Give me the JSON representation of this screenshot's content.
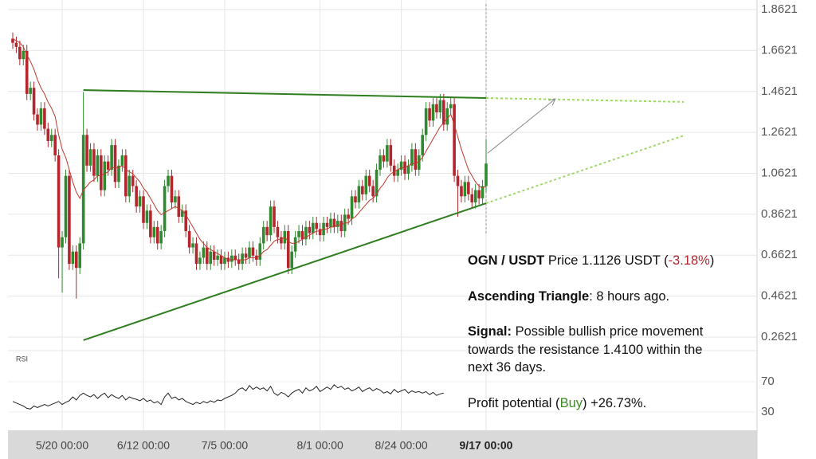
{
  "chart_data": {
    "type": "candlestick",
    "open": [
      1.72,
      1.7,
      1.68,
      1.62,
      1.66,
      1.45,
      1.48,
      1.35,
      1.3,
      1.38,
      1.28,
      1.22,
      1.25,
      1.15,
      0.7,
      0.75,
      1.05,
      0.62,
      0.68,
      0.6,
      0.72,
      1.25,
      1.1,
      1.18,
      1.05,
      1.15,
      0.98,
      1.12,
      1.08,
      1.2,
      1.02,
      1.1,
      1.15,
      0.95,
      1.05,
      1.0,
      0.9,
      0.95,
      0.82,
      0.88,
      0.75,
      0.8,
      0.72,
      0.78,
      1.0,
      1.05,
      0.92,
      0.95,
      0.85,
      0.88,
      0.78,
      0.7,
      0.72,
      0.62,
      0.65,
      0.7,
      0.62,
      0.68,
      0.64,
      0.66,
      0.62,
      0.65,
      0.63,
      0.66,
      0.64,
      0.62,
      0.67,
      0.65,
      0.7,
      0.66,
      0.64,
      0.72,
      0.8,
      0.76,
      0.9,
      0.8,
      0.75,
      0.72,
      0.78,
      0.6,
      0.68,
      0.75,
      0.78,
      0.74,
      0.8,
      0.77,
      0.82,
      0.79,
      0.76,
      0.82,
      0.8,
      0.84,
      0.8,
      0.83,
      0.78,
      0.86,
      0.84,
      0.95,
      0.92,
      1.0,
      0.96,
      1.05,
      1.0,
      0.95,
      1.08,
      1.15,
      1.12,
      1.2,
      1.1,
      1.05,
      1.08,
      1.12,
      1.06,
      1.1,
      1.18,
      1.08,
      1.15,
      1.25,
      1.38,
      1.32,
      1.4,
      1.36,
      1.42,
      1.3,
      1.38,
      1.4,
      1.05,
      1.0,
      0.95,
      1.02,
      0.96,
      0.92,
      0.98,
      0.94,
      1.0
    ],
    "high": [
      1.75,
      1.73,
      1.71,
      1.69,
      1.69,
      1.51,
      1.51,
      1.38,
      1.41,
      1.41,
      1.31,
      1.28,
      1.28,
      1.18,
      0.78,
      1.08,
      1.08,
      0.71,
      0.71,
      0.75,
      1.46,
      1.28,
      1.21,
      1.21,
      1.18,
      1.18,
      1.15,
      1.15,
      1.23,
      1.23,
      1.13,
      1.18,
      1.18,
      1.08,
      1.08,
      1.03,
      0.98,
      0.98,
      0.91,
      0.91,
      0.83,
      0.83,
      0.81,
      1.03,
      1.08,
      1.08,
      0.98,
      0.98,
      0.91,
      0.91,
      0.81,
      0.75,
      0.75,
      0.68,
      0.73,
      0.73,
      0.71,
      0.71,
      0.69,
      0.69,
      0.68,
      0.68,
      0.69,
      0.69,
      0.67,
      0.7,
      0.7,
      0.73,
      0.73,
      0.69,
      0.75,
      0.83,
      0.83,
      0.93,
      0.93,
      0.83,
      0.78,
      0.81,
      0.81,
      0.71,
      0.78,
      0.81,
      0.81,
      0.83,
      0.83,
      0.85,
      0.85,
      0.82,
      0.85,
      0.85,
      0.87,
      0.87,
      0.86,
      0.86,
      0.89,
      0.89,
      0.98,
      0.98,
      1.03,
      1.03,
      1.08,
      1.08,
      1.03,
      1.11,
      1.18,
      1.18,
      1.23,
      1.23,
      1.13,
      1.11,
      1.15,
      1.15,
      1.13,
      1.21,
      1.21,
      1.18,
      1.28,
      1.41,
      1.41,
      1.43,
      1.43,
      1.45,
      1.45,
      1.41,
      1.43,
      1.43,
      1.08,
      1.03,
      1.05,
      1.05,
      0.99,
      1.01,
      1.01,
      1.03,
      1.23
    ],
    "low": [
      1.67,
      1.65,
      1.59,
      1.59,
      1.42,
      1.42,
      1.32,
      1.27,
      1.27,
      1.25,
      1.19,
      1.19,
      1.12,
      0.55,
      0.48,
      0.72,
      0.59,
      0.59,
      0.45,
      0.57,
      0.69,
      1.07,
      1.07,
      1.02,
      1.02,
      0.95,
      0.95,
      1.05,
      1.05,
      0.99,
      0.99,
      1.07,
      0.92,
      0.92,
      0.97,
      0.87,
      0.87,
      0.79,
      0.79,
      0.72,
      0.72,
      0.69,
      0.69,
      0.75,
      0.97,
      0.89,
      0.89,
      0.82,
      0.82,
      0.75,
      0.67,
      0.67,
      0.59,
      0.59,
      0.62,
      0.59,
      0.59,
      0.61,
      0.61,
      0.59,
      0.59,
      0.6,
      0.6,
      0.61,
      0.59,
      0.59,
      0.62,
      0.62,
      0.63,
      0.61,
      0.61,
      0.69,
      0.73,
      0.73,
      0.77,
      0.72,
      0.69,
      0.69,
      0.57,
      0.57,
      0.65,
      0.72,
      0.71,
      0.71,
      0.74,
      0.74,
      0.76,
      0.73,
      0.73,
      0.77,
      0.77,
      0.77,
      0.77,
      0.75,
      0.75,
      0.81,
      0.81,
      0.89,
      0.89,
      0.93,
      0.93,
      0.97,
      0.92,
      0.92,
      1.05,
      1.09,
      1.09,
      1.07,
      1.02,
      1.02,
      1.05,
      1.03,
      1.03,
      1.07,
      1.05,
      1.05,
      1.12,
      1.22,
      1.29,
      1.29,
      1.33,
      1.33,
      1.27,
      1.27,
      1.35,
      1.02,
      0.85,
      0.92,
      0.92,
      0.93,
      0.89,
      0.89,
      0.91,
      0.91,
      0.97
    ],
    "close": [
      1.7,
      1.68,
      1.62,
      1.66,
      1.45,
      1.48,
      1.35,
      1.3,
      1.38,
      1.28,
      1.22,
      1.25,
      1.15,
      0.7,
      0.75,
      1.05,
      0.62,
      0.68,
      0.6,
      0.72,
      1.25,
      1.1,
      1.18,
      1.05,
      1.15,
      0.98,
      1.12,
      1.08,
      1.2,
      1.02,
      1.1,
      1.15,
      0.95,
      1.05,
      1.0,
      0.9,
      0.95,
      0.82,
      0.88,
      0.75,
      0.8,
      0.72,
      0.78,
      1.0,
      1.05,
      0.92,
      0.95,
      0.85,
      0.88,
      0.78,
      0.7,
      0.72,
      0.62,
      0.65,
      0.7,
      0.62,
      0.68,
      0.64,
      0.66,
      0.62,
      0.65,
      0.63,
      0.66,
      0.64,
      0.62,
      0.67,
      0.65,
      0.7,
      0.66,
      0.64,
      0.72,
      0.8,
      0.76,
      0.9,
      0.8,
      0.75,
      0.72,
      0.78,
      0.6,
      0.68,
      0.75,
      0.78,
      0.74,
      0.8,
      0.77,
      0.82,
      0.79,
      0.76,
      0.82,
      0.8,
      0.84,
      0.8,
      0.83,
      0.78,
      0.86,
      0.84,
      0.95,
      0.92,
      1.0,
      0.96,
      1.05,
      1.0,
      0.95,
      1.08,
      1.15,
      1.12,
      1.2,
      1.1,
      1.05,
      1.08,
      1.12,
      1.06,
      1.1,
      1.18,
      1.08,
      1.15,
      1.25,
      1.38,
      1.32,
      1.4,
      1.36,
      1.42,
      1.3,
      1.38,
      1.4,
      1.05,
      1.0,
      0.95,
      1.02,
      0.96,
      0.92,
      0.98,
      0.94,
      1.0,
      1.11
    ],
    "colors": {
      "up": "#2f8a2f",
      "down": "#b3262e"
    },
    "ma": {
      "color": "#c0392b",
      "values": [
        1.72,
        1.71,
        1.7,
        1.68,
        1.64,
        1.61,
        1.57,
        1.52,
        1.48,
        1.45,
        1.41,
        1.38,
        1.34,
        1.25,
        1.18,
        1.14,
        1.08,
        1.02,
        0.97,
        0.94,
        0.98,
        1.0,
        1.02,
        1.03,
        1.05,
        1.05,
        1.06,
        1.07,
        1.09,
        1.09,
        1.09,
        1.1,
        1.08,
        1.07,
        1.06,
        1.04,
        1.02,
        0.99,
        0.97,
        0.94,
        0.91,
        0.88,
        0.86,
        0.87,
        0.88,
        0.89,
        0.9,
        0.89,
        0.88,
        0.86,
        0.83,
        0.8,
        0.77,
        0.74,
        0.72,
        0.7,
        0.69,
        0.68,
        0.67,
        0.66,
        0.65,
        0.64,
        0.64,
        0.64,
        0.64,
        0.64,
        0.64,
        0.65,
        0.65,
        0.65,
        0.66,
        0.68,
        0.69,
        0.71,
        0.73,
        0.74,
        0.74,
        0.75,
        0.73,
        0.72,
        0.72,
        0.73,
        0.74,
        0.75,
        0.76,
        0.77,
        0.78,
        0.78,
        0.79,
        0.79,
        0.8,
        0.8,
        0.81,
        0.81,
        0.82,
        0.82,
        0.84,
        0.85,
        0.87,
        0.89,
        0.91,
        0.93,
        0.94,
        0.96,
        0.99,
        1.01,
        1.04,
        1.06,
        1.07,
        1.08,
        1.09,
        1.09,
        1.1,
        1.11,
        1.11,
        1.12,
        1.14,
        1.17,
        1.2,
        1.23,
        1.26,
        1.29,
        1.31,
        1.33,
        1.35,
        1.3,
        1.24,
        1.18,
        1.13,
        1.08,
        1.05,
        1.02,
        1.0,
        0.99,
        1.0
      ]
    },
    "xlim": [
      -1.35,
      210.7
    ],
    "xticks": [
      {
        "value": 14,
        "label": "5/20 00:00"
      },
      {
        "value": 37,
        "label": "6/12 00:00"
      },
      {
        "value": 60,
        "label": "7/5 00:00"
      },
      {
        "value": 87,
        "label": "8/1 00:00"
      },
      {
        "value": 110,
        "label": "8/24 00:00"
      },
      {
        "value": 134,
        "label": "9/17 00:00"
      }
    ],
    "ylim": [
      0.196,
      1.909
    ],
    "yticks": [
      1.8621,
      1.6621,
      1.4621,
      1.2621,
      1.0621,
      0.8621,
      0.6621,
      0.4621,
      0.2621
    ],
    "grid": true,
    "trendlines": [
      {
        "color": "#2e7d1e",
        "projection_color": "#9fd86a",
        "x": [
          20,
          134,
          190
        ],
        "values": [
          1.469,
          1.43,
          1.411
        ]
      },
      {
        "color": "#2e7d1e",
        "projection_color": "#9fd86a",
        "x": [
          20,
          134,
          190
        ],
        "values": [
          0.247,
          0.916,
          1.247
        ]
      }
    ],
    "arrow": {
      "color": "#888888",
      "x": [
        134.4,
        153.6
      ],
      "values": [
        1.16,
        1.426
      ]
    },
    "rsi": {
      "label": "RSI",
      "color": "#222222",
      "ylim": [
        6,
        111
      ],
      "yticks": [
        70,
        30
      ],
      "values": [
        44,
        42,
        40,
        38,
        35,
        34,
        38,
        36,
        38,
        40,
        38,
        40,
        42,
        44,
        40,
        43,
        45,
        50,
        46,
        52,
        55,
        52,
        50,
        53,
        48,
        52,
        55,
        49,
        53,
        50,
        48,
        52,
        46,
        50,
        48,
        47,
        45,
        48,
        44,
        46,
        42,
        44,
        40,
        50,
        55,
        48,
        50,
        46,
        48,
        44,
        42,
        40,
        43,
        41,
        44,
        42,
        45,
        43,
        46,
        45,
        48,
        50,
        52,
        55,
        60,
        62,
        58,
        65,
        60,
        63,
        60,
        62,
        58,
        64,
        55,
        52,
        56,
        54,
        50,
        55,
        58,
        60,
        55,
        62,
        58,
        60,
        64,
        57,
        60,
        63,
        60,
        66,
        62,
        64,
        60,
        62,
        58,
        60,
        63,
        57,
        60,
        62,
        58,
        61,
        59,
        55,
        57,
        54,
        60,
        56,
        58,
        60,
        55,
        58,
        56,
        57,
        55,
        57,
        53,
        56,
        52,
        54,
        55,
        null,
        null,
        null,
        null,
        null,
        null,
        null,
        null,
        null,
        null,
        null,
        null
      ]
    }
  },
  "info": {
    "pair": "OGN / USDT",
    "price": "Price 1.1126 USDT (",
    "change": "-3.18%",
    "price_end": ")",
    "pattern": "Ascending Triangle",
    "pattern_time": ": 8 hours ago.",
    "signal_label": "Signal:",
    "signal_lines": [
      "Possible bullish price movement",
      "towards the resistance 1.4100 within the",
      "next 36 days."
    ],
    "profit": "Profit potential (",
    "action": "Buy",
    "profit_end": ") +26.73%."
  }
}
